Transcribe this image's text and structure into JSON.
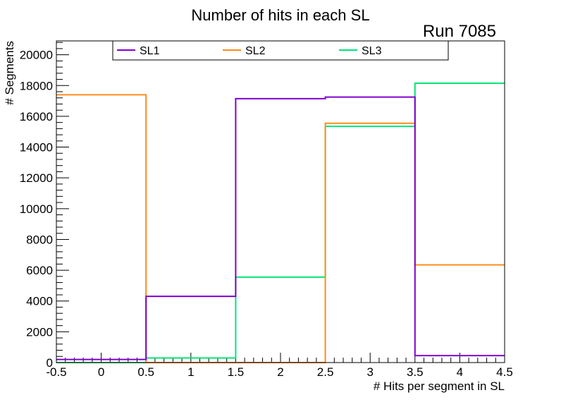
{
  "chart_data": {
    "type": "histogram-step",
    "title": "Number of hits in each SL",
    "run_label": "Run 7085",
    "xlabel": "# Hits per segment in SL",
    "ylabel": "# Segments",
    "xlim": [
      -0.5,
      4.5
    ],
    "ylim": [
      0,
      20900
    ],
    "bin_edges": [
      -0.5,
      0.5,
      1.5,
      2.5,
      3.5,
      4.5
    ],
    "x_ticks": [
      "-0.5",
      "0",
      "0.5",
      "1",
      "1.5",
      "2",
      "2.5",
      "3",
      "3.5",
      "4",
      "4.5"
    ],
    "x_tick_values": [
      -0.5,
      0,
      0.5,
      1,
      1.5,
      2,
      2.5,
      3,
      3.5,
      4,
      4.5
    ],
    "y_ticks": [
      "0",
      "2000",
      "4000",
      "6000",
      "8000",
      "10000",
      "12000",
      "14000",
      "16000",
      "18000",
      "20000"
    ],
    "y_tick_values": [
      0,
      2000,
      4000,
      6000,
      8000,
      10000,
      12000,
      14000,
      16000,
      18000,
      20000
    ],
    "legend_position": "top",
    "series": [
      {
        "name": "SL1",
        "color": "#8000d0",
        "values": [
          200,
          4300,
          17150,
          17250,
          450
        ]
      },
      {
        "name": "SL2",
        "color": "#ff8c1a",
        "values": [
          17400,
          0,
          0,
          15550,
          6350
        ]
      },
      {
        "name": "SL3",
        "color": "#00e676",
        "values": [
          0,
          300,
          5550,
          15350,
          18150
        ]
      }
    ]
  }
}
